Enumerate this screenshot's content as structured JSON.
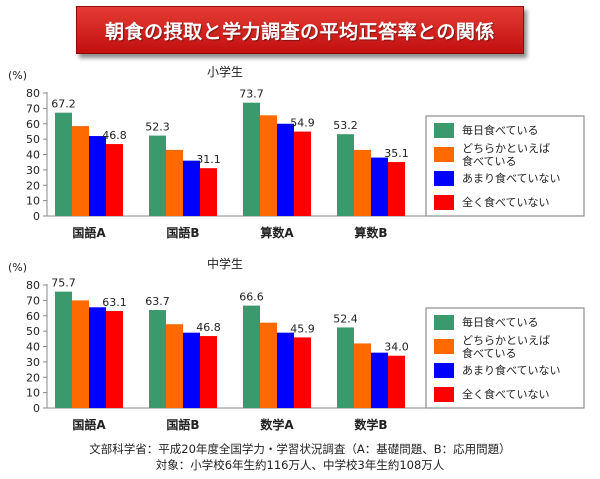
{
  "title": "朝食の摂取と学力調査の平均正答率との関係",
  "legend": [
    {
      "label_lines": [
        "毎日食べている"
      ],
      "color": "#3a9a6e"
    },
    {
      "label_lines": [
        "どちらかといえば",
        "食べている"
      ],
      "color": "#ff6a00"
    },
    {
      "label_lines": [
        "あまり食べていない"
      ],
      "color": "#0000ff"
    },
    {
      "label_lines": [
        "全く食べていない"
      ],
      "color": "#ff0000"
    }
  ],
  "footer": {
    "source": "文部科学省：平成20年度全国学力・学習状況調査（A：基礎問題、B：応用問題）",
    "subjects": "対象：小学校6年生約116万人、中学校3年生約108万人"
  },
  "chart_data": [
    {
      "type": "bar",
      "title": "小学生",
      "ylabel": "(%)",
      "ylim": [
        0,
        80
      ],
      "yticks": [
        0,
        10,
        20,
        30,
        40,
        50,
        60,
        70,
        80
      ],
      "categories": [
        "国語A",
        "国語B",
        "算数A",
        "算数B"
      ],
      "series": [
        {
          "name": "毎日食べている",
          "values": [
            67.2,
            52.3,
            73.7,
            53.2
          ]
        },
        {
          "name": "どちらかといえば食べている",
          "values": [
            58.5,
            43,
            65.5,
            43
          ]
        },
        {
          "name": "あまり食べていない",
          "values": [
            52,
            36,
            60,
            38
          ]
        },
        {
          "name": "全く食べていない",
          "values": [
            46.8,
            31.1,
            54.9,
            35.1
          ]
        }
      ],
      "data_labels": [
        {
          "category": 0,
          "series": 0,
          "text": "67.2"
        },
        {
          "category": 0,
          "series": 3,
          "text": "46.8"
        },
        {
          "category": 1,
          "series": 0,
          "text": "52.3"
        },
        {
          "category": 1,
          "series": 3,
          "text": "31.1"
        },
        {
          "category": 2,
          "series": 0,
          "text": "73.7"
        },
        {
          "category": 2,
          "series": 3,
          "text": "54.9"
        },
        {
          "category": 3,
          "series": 0,
          "text": "53.2"
        },
        {
          "category": 3,
          "series": 3,
          "text": "35.1"
        }
      ]
    },
    {
      "type": "bar",
      "title": "中学生",
      "ylabel": "(%)",
      "ylim": [
        0,
        80
      ],
      "yticks": [
        0,
        10,
        20,
        30,
        40,
        50,
        60,
        70,
        80
      ],
      "categories": [
        "国語A",
        "国語B",
        "数学A",
        "数学B"
      ],
      "series": [
        {
          "name": "毎日食べている",
          "values": [
            75.7,
            63.7,
            66.6,
            52.4
          ]
        },
        {
          "name": "どちらかといえば食べている",
          "values": [
            70,
            54.5,
            55.5,
            42
          ]
        },
        {
          "name": "あまり食べていない",
          "values": [
            65.5,
            49,
            49,
            36
          ]
        },
        {
          "name": "全く食べていない",
          "values": [
            63.1,
            46.8,
            45.9,
            34.0
          ]
        }
      ],
      "data_labels": [
        {
          "category": 0,
          "series": 0,
          "text": "75.7"
        },
        {
          "category": 0,
          "series": 3,
          "text": "63.1"
        },
        {
          "category": 1,
          "series": 0,
          "text": "63.7"
        },
        {
          "category": 1,
          "series": 3,
          "text": "46.8"
        },
        {
          "category": 2,
          "series": 0,
          "text": "66.6"
        },
        {
          "category": 2,
          "series": 3,
          "text": "45.9"
        },
        {
          "category": 3,
          "series": 0,
          "text": "52.4"
        },
        {
          "category": 3,
          "series": 3,
          "text": "34.0"
        }
      ]
    }
  ]
}
